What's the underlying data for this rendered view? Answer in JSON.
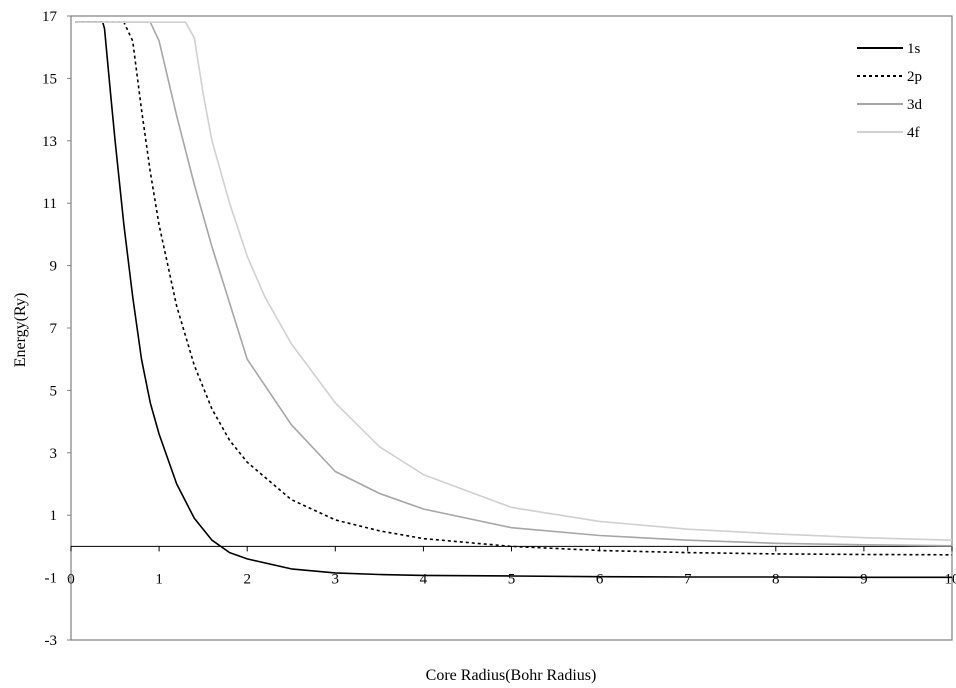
{
  "chart_data": {
    "type": "line",
    "title": "",
    "xlabel": "Core Radius(Bohr Radius)",
    "ylabel": "Energy(Ry)",
    "xlim": [
      0,
      10
    ],
    "ylim": [
      -3,
      17
    ],
    "x_ticks": [
      0,
      1,
      2,
      3,
      4,
      5,
      6,
      7,
      8,
      9,
      10
    ],
    "x_tick_labels": [
      "0",
      "1",
      "2",
      "3",
      "4",
      "5",
      "6",
      "7",
      "8",
      "9",
      "10"
    ],
    "y_ticks": [
      -3,
      -1,
      1,
      3,
      5,
      7,
      9,
      11,
      13,
      15,
      17
    ],
    "y_tick_labels": [
      "-3",
      "-1",
      "1",
      "3",
      "5",
      "7",
      "9",
      "11",
      "13",
      "15",
      "17"
    ],
    "grid": false,
    "legend_position": "top-right",
    "series": [
      {
        "name": "1s",
        "color": "#000000",
        "dash": "solid",
        "x": [
          0.05,
          0.36,
          0.38,
          0.45,
          0.5,
          0.6,
          0.7,
          0.8,
          0.9,
          1.0,
          1.2,
          1.4,
          1.6,
          1.8,
          2.0,
          2.5,
          3.0,
          3.5,
          4.0,
          5.0,
          6.0,
          7.0,
          8.0,
          9.0,
          10.0
        ],
        "y": [
          16.8,
          16.8,
          16.6,
          14.5,
          13.0,
          10.3,
          8.0,
          6.0,
          4.6,
          3.6,
          2.0,
          0.9,
          0.2,
          -0.2,
          -0.4,
          -0.72,
          -0.85,
          -0.9,
          -0.93,
          -0.95,
          -0.97,
          -0.98,
          -0.98,
          -0.99,
          -0.99
        ]
      },
      {
        "name": "2p",
        "color": "#000000",
        "dash": "dotted",
        "x": [
          0.05,
          0.6,
          0.7,
          0.8,
          0.9,
          1.0,
          1.2,
          1.4,
          1.6,
          1.8,
          2.0,
          2.5,
          3.0,
          3.5,
          4.0,
          5.0,
          6.0,
          7.0,
          8.0,
          9.0,
          10.0
        ],
        "y": [
          16.8,
          16.8,
          16.2,
          14.0,
          12.0,
          10.3,
          7.7,
          5.8,
          4.4,
          3.4,
          2.7,
          1.5,
          0.85,
          0.5,
          0.25,
          0.0,
          -0.13,
          -0.2,
          -0.24,
          -0.26,
          -0.27
        ]
      },
      {
        "name": "3d",
        "color": "#a6a6a6",
        "dash": "solid",
        "x": [
          0.05,
          0.9,
          1.0,
          1.1,
          1.2,
          1.4,
          1.6,
          1.8,
          2.0,
          2.5,
          3.0,
          3.5,
          4.0,
          5.0,
          6.0,
          7.0,
          8.0,
          9.0,
          10.0
        ],
        "y": [
          16.8,
          16.8,
          16.2,
          15.0,
          13.8,
          11.6,
          9.6,
          7.8,
          6.0,
          3.9,
          2.4,
          1.7,
          1.2,
          0.6,
          0.35,
          0.2,
          0.1,
          0.05,
          0.02
        ]
      },
      {
        "name": "4f",
        "color": "#d0d0d0",
        "dash": "solid",
        "x": [
          0.05,
          1.3,
          1.4,
          1.5,
          1.6,
          1.8,
          2.0,
          2.2,
          2.5,
          3.0,
          3.5,
          4.0,
          5.0,
          6.0,
          7.0,
          8.0,
          9.0,
          10.0
        ],
        "y": [
          16.8,
          16.8,
          16.3,
          14.5,
          13.0,
          11.0,
          9.3,
          8.0,
          6.5,
          4.6,
          3.2,
          2.3,
          1.25,
          0.8,
          0.55,
          0.4,
          0.28,
          0.2
        ]
      }
    ]
  }
}
